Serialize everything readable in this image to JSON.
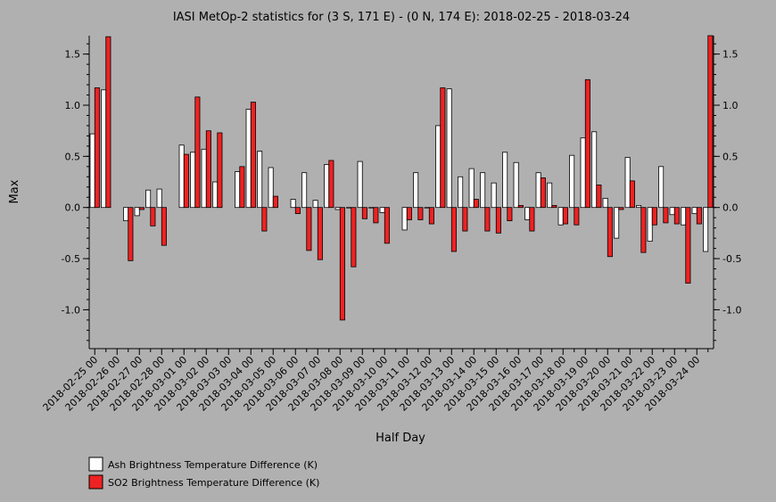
{
  "chart_data": {
    "type": "bar",
    "title": "IASI MetOp-2 statistics for (3 S, 171 E) - (0 N, 174 E): 2018-02-25 - 2018-03-24",
    "xlabel": "Half Day",
    "ylabel": "Max",
    "ylim": [
      -1.38,
      1.68
    ],
    "yticks": [
      1.5,
      1.0,
      0.5,
      0.0,
      -0.5,
      -1.0
    ],
    "ytick_labels": [
      "1.5",
      "1.0",
      "0.5",
      "0.0",
      "-0.5",
      "-1.0"
    ],
    "grid": false,
    "legend_position": "bottom-left",
    "categories": [
      "2018-02-25 00",
      "2018-02-25 12",
      "2018-02-26 00",
      "2018-02-26 12",
      "2018-02-27 00",
      "2018-02-27 12",
      "2018-02-28 00",
      "2018-02-28 12",
      "2018-03-01 00",
      "2018-03-01 12",
      "2018-03-02 00",
      "2018-03-02 12",
      "2018-03-03 00",
      "2018-03-03 12",
      "2018-03-04 00",
      "2018-03-04 12",
      "2018-03-05 00",
      "2018-03-05 12",
      "2018-03-06 00",
      "2018-03-06 12",
      "2018-03-07 00",
      "2018-03-07 12",
      "2018-03-08 00",
      "2018-03-08 12",
      "2018-03-09 00",
      "2018-03-09 12",
      "2018-03-10 00",
      "2018-03-10 12",
      "2018-03-11 00",
      "2018-03-11 12",
      "2018-03-12 00",
      "2018-03-12 12",
      "2018-03-13 00",
      "2018-03-13 12",
      "2018-03-14 00",
      "2018-03-14 12",
      "2018-03-15 00",
      "2018-03-15 12",
      "2018-03-16 00",
      "2018-03-16 12",
      "2018-03-17 00",
      "2018-03-17 12",
      "2018-03-18 00",
      "2018-03-18 12",
      "2018-03-19 00",
      "2018-03-19 12",
      "2018-03-20 00",
      "2018-03-20 12",
      "2018-03-21 00",
      "2018-03-21 12",
      "2018-03-22 00",
      "2018-03-22 12",
      "2018-03-23 00",
      "2018-03-23 12",
      "2018-03-24 00",
      "2018-03-24 12"
    ],
    "xtick_labels": [
      "2018-02-25 00",
      "2018-02-26 00",
      "2018-02-27 00",
      "2018-02-28 00",
      "2018-03-01 00",
      "2018-03-02 00",
      "2018-03-03 00",
      "2018-03-04 00",
      "2018-03-05 00",
      "2018-03-06 00",
      "2018-03-07 00",
      "2018-03-08 00",
      "2018-03-09 00",
      "2018-03-10 00",
      "2018-03-11 00",
      "2018-03-12 00",
      "2018-03-13 00",
      "2018-03-14 00",
      "2018-03-15 00",
      "2018-03-16 00",
      "2018-03-17 00",
      "2018-03-18 00",
      "2018-03-19 00",
      "2018-03-20 00",
      "2018-03-21 00",
      "2018-03-22 00",
      "2018-03-23 00",
      "2018-03-24 00"
    ],
    "series": [
      {
        "name": "Ash Brightness Temperature Difference (K)",
        "color": "#ffffff",
        "values": [
          0.72,
          1.15,
          null,
          -0.13,
          -0.08,
          0.17,
          0.18,
          null,
          0.61,
          0.54,
          0.57,
          0.25,
          null,
          0.35,
          0.96,
          0.55,
          0.39,
          null,
          0.08,
          0.34,
          0.07,
          0.42,
          -0.02,
          0.0,
          0.45,
          0.0,
          -0.05,
          null,
          -0.22,
          0.34,
          0.0,
          0.8,
          1.16,
          0.3,
          0.38,
          0.34,
          0.24,
          0.54,
          0.44,
          -0.12,
          0.34,
          0.24,
          -0.17,
          0.51,
          0.68,
          0.74,
          0.09,
          -0.3,
          0.49,
          0.02,
          -0.33,
          0.4,
          -0.07,
          -0.17,
          -0.06,
          -0.43
        ]
      },
      {
        "name": "SO2 Brightness Temperature Difference (K)",
        "color": "#ee2222",
        "values": [
          1.17,
          1.67,
          null,
          -0.52,
          -0.02,
          -0.18,
          -0.37,
          null,
          0.52,
          1.08,
          0.75,
          0.73,
          null,
          0.4,
          1.03,
          -0.23,
          0.11,
          null,
          -0.06,
          -0.42,
          -0.51,
          0.46,
          -1.1,
          -0.58,
          -0.11,
          -0.15,
          -0.35,
          null,
          -0.12,
          -0.12,
          -0.16,
          1.17,
          -0.43,
          -0.23,
          0.08,
          -0.23,
          -0.25,
          -0.13,
          0.02,
          -0.23,
          0.29,
          0.02,
          -0.16,
          -0.17,
          1.25,
          0.22,
          -0.48,
          -0.02,
          0.26,
          -0.44,
          -0.17,
          -0.15,
          -0.16,
          -0.74,
          -0.16,
          1.68
        ]
      }
    ]
  },
  "legend": {
    "items": [
      {
        "label": "Ash Brightness Temperature Difference (K)",
        "color": "#ffffff"
      },
      {
        "label": "SO2 Brightness Temperature Difference (K)",
        "color": "#ee2222"
      }
    ]
  }
}
